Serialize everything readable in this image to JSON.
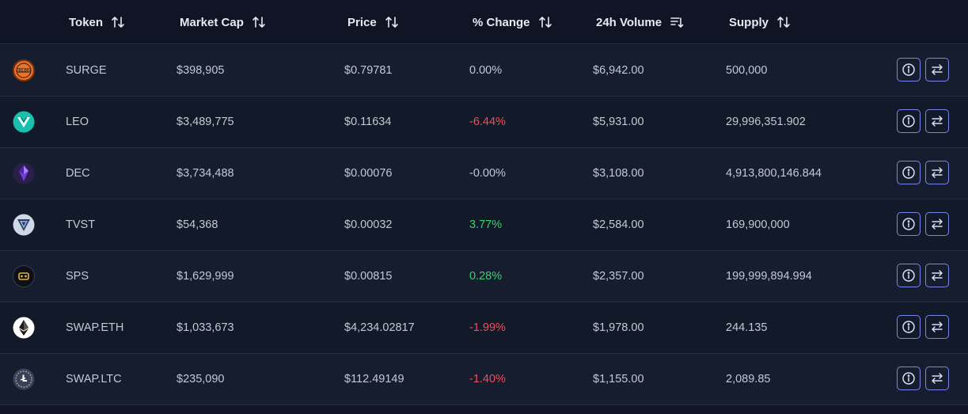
{
  "table": {
    "columns": [
      {
        "key": "token",
        "label": "Token",
        "sort_icon": "sort-arrows-icon"
      },
      {
        "key": "market_cap",
        "label": "Market Cap",
        "sort_icon": "sort-arrows-icon"
      },
      {
        "key": "price",
        "label": "Price",
        "sort_icon": "sort-arrows-icon"
      },
      {
        "key": "change",
        "label": "% Change",
        "sort_icon": "sort-arrows-icon"
      },
      {
        "key": "volume",
        "label": "24h Volume",
        "sort_icon": "sort-descending-icon"
      },
      {
        "key": "supply",
        "label": "Supply",
        "sort_icon": "sort-arrows-icon"
      }
    ],
    "rows": [
      {
        "token": "SURGE",
        "logo_icon": "surge-logo-icon",
        "market_cap": "$398,905",
        "price": "$0.79781",
        "change": "0.00%",
        "change_trend": "neutral",
        "volume": "$6,942.00",
        "supply": "500,000"
      },
      {
        "token": "LEO",
        "logo_icon": "leo-logo-icon",
        "market_cap": "$3,489,775",
        "price": "$0.11634",
        "change": "-6.44%",
        "change_trend": "negative",
        "volume": "$5,931.00",
        "supply": "29,996,351.902"
      },
      {
        "token": "DEC",
        "logo_icon": "dec-logo-icon",
        "market_cap": "$3,734,488",
        "price": "$0.00076",
        "change": "-0.00%",
        "change_trend": "neutral",
        "volume": "$3,108.00",
        "supply": "4,913,800,146.844"
      },
      {
        "token": "TVST",
        "logo_icon": "tvst-logo-icon",
        "market_cap": "$54,368",
        "price": "$0.00032",
        "change": "3.77%",
        "change_trend": "positive",
        "volume": "$2,584.00",
        "supply": "169,900,000"
      },
      {
        "token": "SPS",
        "logo_icon": "sps-logo-icon",
        "market_cap": "$1,629,999",
        "price": "$0.00815",
        "change": "0.28%",
        "change_trend": "positive",
        "volume": "$2,357.00",
        "supply": "199,999,894.994"
      },
      {
        "token": "SWAP.ETH",
        "logo_icon": "ethereum-logo-icon",
        "market_cap": "$1,033,673",
        "price": "$4,234.02817",
        "change": "-1.99%",
        "change_trend": "negative",
        "volume": "$1,978.00",
        "supply": "244.135"
      },
      {
        "token": "SWAP.LTC",
        "logo_icon": "litecoin-logo-icon",
        "market_cap": "$235,090",
        "price": "$112.49149",
        "change": "-1.40%",
        "change_trend": "negative",
        "volume": "$1,155.00",
        "supply": "2,089.85"
      }
    ],
    "actions": {
      "info_icon": "info-icon",
      "swap_icon": "swap-arrows-icon"
    }
  },
  "colors": {
    "background": "#0f1524",
    "row_odd": "#161d2e",
    "row_even": "#121929",
    "accent_button": "#7b86e8",
    "positive": "#3ccf6e",
    "negative": "#ef4d59"
  }
}
